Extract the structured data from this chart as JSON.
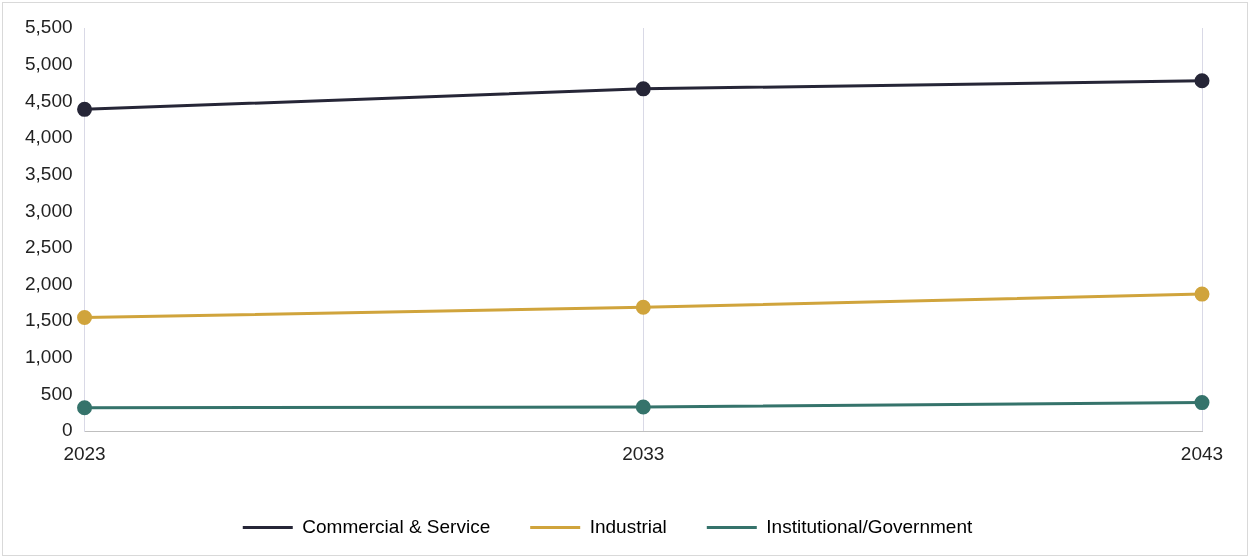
{
  "chart_data": {
    "type": "line",
    "categories": [
      "2023",
      "2033",
      "2043"
    ],
    "series": [
      {
        "name": "Commercial & Service",
        "color": "#262637",
        "values": [
          4390,
          4670,
          4780
        ]
      },
      {
        "name": "Industrial",
        "color": "#d0a43c",
        "values": [
          1550,
          1690,
          1870
        ]
      },
      {
        "name": "Institutional/Government",
        "color": "#35736b",
        "values": [
          320,
          330,
          390
        ]
      }
    ],
    "ylim": [
      0,
      5500
    ],
    "yticks": [
      0,
      500,
      {
        "value": 1000,
        "label": "1,000"
      },
      {
        "value": 1500,
        "label": "1,500"
      },
      {
        "value": 2000,
        "label": "2,000"
      },
      {
        "value": 2500,
        "label": "2,500"
      },
      {
        "value": 3000,
        "label": "3,000"
      },
      {
        "value": 3500,
        "label": "3,500"
      },
      {
        "value": 4000,
        "label": "4,000"
      },
      {
        "value": 4500,
        "label": "4,500"
      },
      {
        "value": 5000,
        "label": "5,000"
      },
      {
        "value": 5500,
        "label": "5,500"
      }
    ],
    "grid": "x",
    "legend": "bottom",
    "marker": "circle",
    "line_style": "solid"
  }
}
